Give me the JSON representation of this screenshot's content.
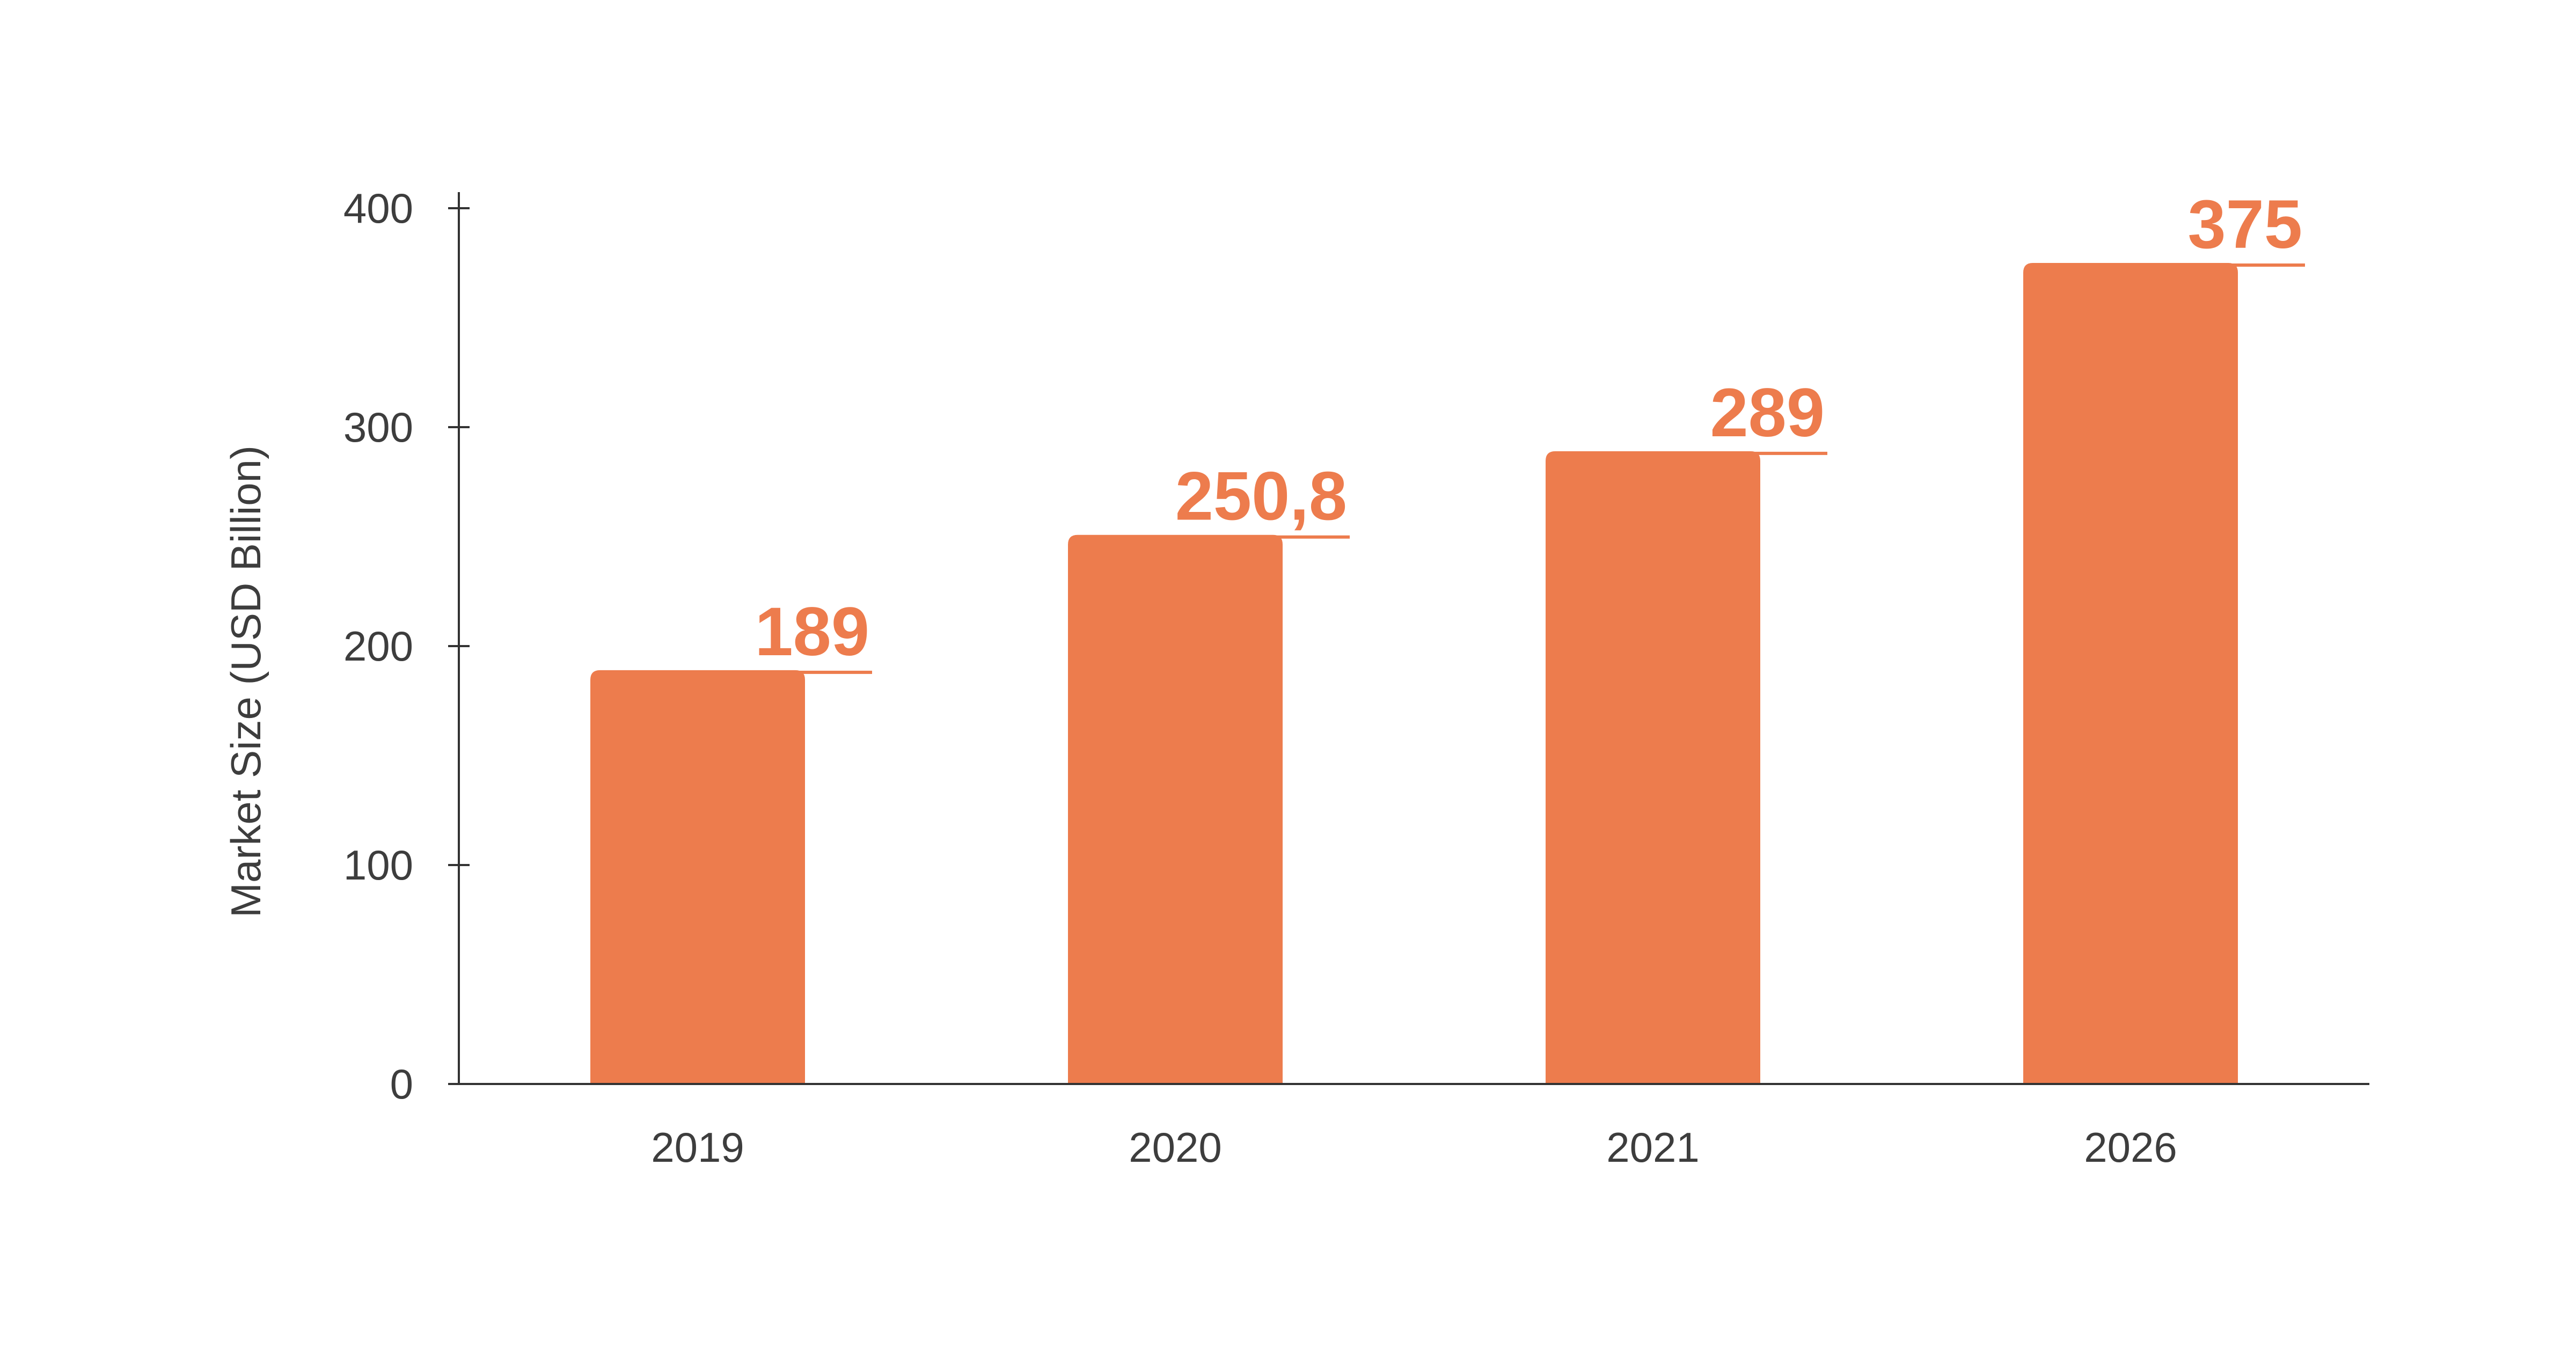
{
  "chart_data": {
    "type": "bar",
    "categories": [
      "2019",
      "2020",
      "2021",
      "2026"
    ],
    "values": [
      189,
      250.8,
      289,
      375
    ],
    "value_labels": [
      "189",
      "250,8",
      "289",
      "375"
    ],
    "title": "",
    "xlabel": "",
    "ylabel": "Market Size (USD Billion)",
    "ylim": [
      0,
      400
    ],
    "yticks": [
      0,
      100,
      200,
      300,
      400
    ],
    "ytick_labels": [
      "0",
      "100",
      "200",
      "300",
      "400"
    ],
    "grid": false,
    "legend": "none",
    "bar_color": "#ED7C4D",
    "label_color": "#ED7C4D",
    "axis_color": "#333333",
    "text_color": "#3d3d3d"
  }
}
